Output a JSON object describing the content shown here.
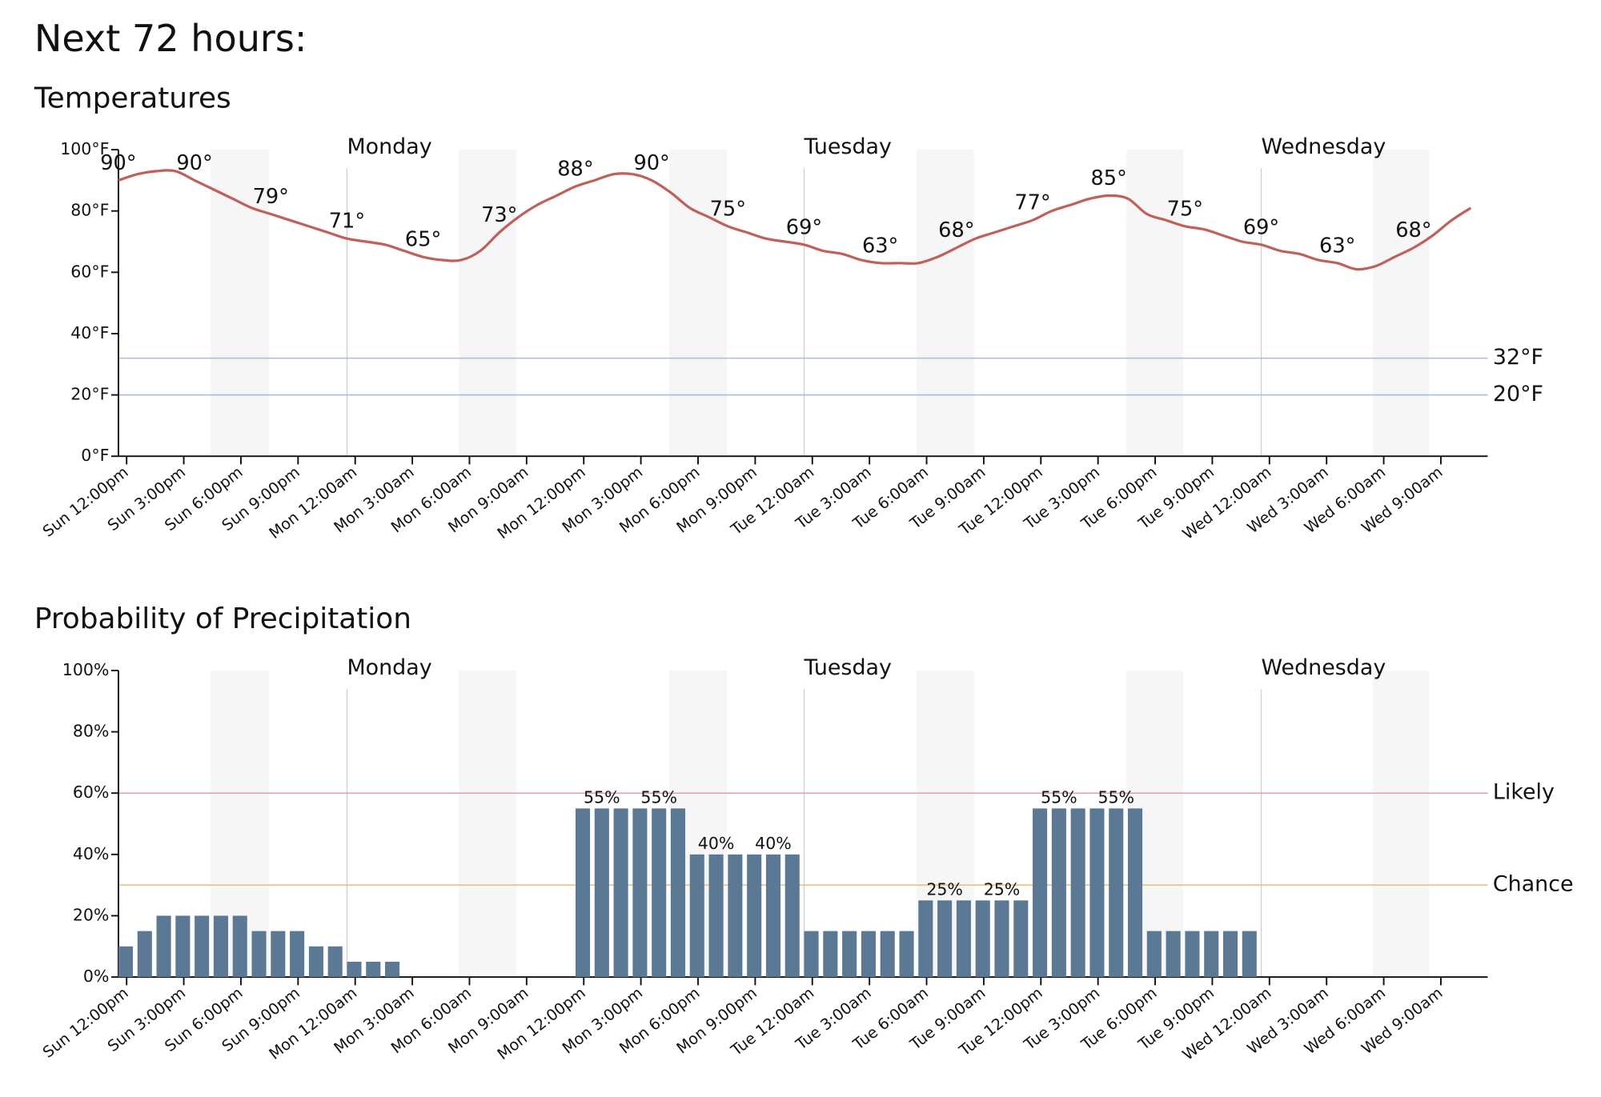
{
  "title": "Next 72 hours:",
  "chart_data": [
    {
      "type": "line",
      "title": "Temperatures",
      "color": "#c0605a",
      "categories": [
        "Sun 12:00pm",
        null,
        null,
        "Sun 3:00pm",
        null,
        null,
        "Sun 6:00pm",
        null,
        null,
        "Sun 9:00pm",
        null,
        null,
        "Mon 12:00am",
        null,
        null,
        "Mon 3:00am",
        null,
        null,
        "Mon 6:00am",
        null,
        null,
        "Mon 9:00am",
        null,
        null,
        "Mon 12:00pm",
        null,
        null,
        "Mon 3:00pm",
        null,
        null,
        "Mon 6:00pm",
        null,
        null,
        "Mon 9:00pm",
        null,
        null,
        "Tue 12:00am",
        null,
        null,
        "Tue 3:00am",
        null,
        null,
        "Tue 6:00am",
        null,
        null,
        "Tue 9:00am",
        null,
        null,
        "Tue 12:00pm",
        null,
        null,
        "Tue 3:00pm",
        null,
        null,
        "Tue 6:00pm",
        null,
        null,
        "Tue 9:00pm",
        null,
        null,
        "Wed 12:00am",
        null,
        null,
        "Wed 3:00am",
        null,
        null,
        "Wed 6:00am",
        null,
        null,
        "Wed 9:00am",
        null,
        null
      ],
      "values": [
        90,
        92,
        93,
        93,
        90,
        87,
        84,
        81,
        79,
        77,
        75,
        73,
        71,
        70,
        69,
        67,
        65,
        64,
        64,
        67,
        73,
        78,
        82,
        85,
        88,
        90,
        92,
        92,
        90,
        86,
        81,
        78,
        75,
        73,
        71,
        70,
        69,
        67,
        66,
        64,
        63,
        63,
        63,
        65,
        68,
        71,
        73,
        75,
        77,
        80,
        82,
        84,
        85,
        84,
        79,
        77,
        75,
        74,
        72,
        70,
        69,
        67,
        66,
        64,
        63,
        61,
        62,
        65,
        68,
        72,
        77,
        81
      ],
      "value_labels": [
        "90°",
        null,
        null,
        null,
        "90°",
        null,
        null,
        null,
        "79°",
        null,
        null,
        null,
        "71°",
        null,
        null,
        null,
        "65°",
        null,
        null,
        null,
        "73°",
        null,
        null,
        null,
        "88°",
        null,
        null,
        null,
        "90°",
        null,
        null,
        null,
        "75°",
        null,
        null,
        null,
        "69°",
        null,
        null,
        null,
        "63°",
        null,
        null,
        null,
        "68°",
        null,
        null,
        null,
        "77°",
        null,
        null,
        null,
        "85°",
        null,
        null,
        null,
        "75°",
        null,
        null,
        null,
        "69°",
        null,
        null,
        null,
        "63°",
        null,
        null,
        null,
        "68°",
        null,
        null,
        null
      ],
      "ylim": [
        0,
        100
      ],
      "yticks": [
        {
          "value": 0,
          "label": "0°F"
        },
        {
          "value": 20,
          "label": "20°F"
        },
        {
          "value": 40,
          "label": "40°F"
        },
        {
          "value": 60,
          "label": "60°F"
        },
        {
          "value": 80,
          "label": "80°F"
        },
        {
          "value": 100,
          "label": "100°F"
        }
      ],
      "reference_lines": [
        {
          "value": 32,
          "label": "32°F",
          "color": "#a9bcd9"
        },
        {
          "value": 20,
          "label": "20°F",
          "color": "#a9bcd9"
        }
      ],
      "day_markers": [
        {
          "label": "Monday",
          "x": "Mon 12:00am"
        },
        {
          "label": "Tuesday",
          "x": "Tue 12:00am"
        },
        {
          "label": "Wednesday",
          "x": "Wed 12:00am"
        }
      ]
    },
    {
      "type": "bar",
      "title": "Probability of Precipitation",
      "color": "#5b7895",
      "categories": [
        "Sun 12:00pm",
        null,
        null,
        "Sun 3:00pm",
        null,
        null,
        "Sun 6:00pm",
        null,
        null,
        "Sun 9:00pm",
        null,
        null,
        "Mon 12:00am",
        null,
        null,
        "Mon 3:00am",
        null,
        null,
        "Mon 6:00am",
        null,
        null,
        "Mon 9:00am",
        null,
        null,
        "Mon 12:00pm",
        null,
        null,
        "Mon 3:00pm",
        null,
        null,
        "Mon 6:00pm",
        null,
        null,
        "Mon 9:00pm",
        null,
        null,
        "Tue 12:00am",
        null,
        null,
        "Tue 3:00am",
        null,
        null,
        "Tue 6:00am",
        null,
        null,
        "Tue 9:00am",
        null,
        null,
        "Tue 12:00pm",
        null,
        null,
        "Tue 3:00pm",
        null,
        null,
        "Tue 6:00pm",
        null,
        null,
        "Tue 9:00pm",
        null,
        null,
        "Wed 12:00am",
        null,
        null,
        "Wed 3:00am",
        null,
        null,
        "Wed 6:00am",
        null,
        null,
        "Wed 9:00am",
        null,
        null
      ],
      "values": [
        10,
        15,
        20,
        20,
        20,
        20,
        20,
        15,
        15,
        15,
        10,
        10,
        5,
        5,
        5,
        0,
        0,
        0,
        0,
        0,
        0,
        0,
        0,
        0,
        55,
        55,
        55,
        55,
        55,
        55,
        40,
        40,
        40,
        40,
        40,
        40,
        15,
        15,
        15,
        15,
        15,
        15,
        25,
        25,
        25,
        25,
        25,
        25,
        55,
        55,
        55,
        55,
        55,
        55,
        15,
        15,
        15,
        15,
        15,
        15,
        0,
        0,
        0,
        0,
        0,
        0,
        0,
        0,
        0,
        0,
        0,
        0
      ],
      "value_labels": [
        null,
        null,
        null,
        null,
        null,
        null,
        null,
        null,
        null,
        null,
        null,
        null,
        null,
        null,
        null,
        null,
        null,
        null,
        null,
        null,
        null,
        null,
        null,
        null,
        null,
        "55%",
        null,
        null,
        "55%",
        null,
        null,
        "40%",
        null,
        null,
        "40%",
        null,
        null,
        null,
        null,
        null,
        null,
        null,
        null,
        "25%",
        null,
        null,
        "25%",
        null,
        null,
        "55%",
        null,
        null,
        "55%",
        null,
        null,
        null,
        null,
        null,
        null,
        null,
        null,
        null,
        null,
        null,
        null,
        null,
        null,
        null,
        null,
        null,
        null,
        null
      ],
      "ylim": [
        0,
        100
      ],
      "yticks": [
        {
          "value": 0,
          "label": "0%"
        },
        {
          "value": 20,
          "label": "20%"
        },
        {
          "value": 40,
          "label": "40%"
        },
        {
          "value": 60,
          "label": "60%"
        },
        {
          "value": 80,
          "label": "80%"
        },
        {
          "value": 100,
          "label": "100%"
        }
      ],
      "reference_lines": [
        {
          "value": 60,
          "label": "Likely",
          "color": "#d9a3ad",
          "text_color": "#4a1a22"
        },
        {
          "value": 30,
          "label": "Chance",
          "color": "#e8bd72",
          "text_color": "#5a3a10"
        }
      ],
      "day_markers": [
        {
          "label": "Monday",
          "x": "Mon 12:00am"
        },
        {
          "label": "Tuesday",
          "x": "Tue 12:00am"
        },
        {
          "label": "Wednesday",
          "x": "Wed 12:00am"
        }
      ]
    }
  ]
}
